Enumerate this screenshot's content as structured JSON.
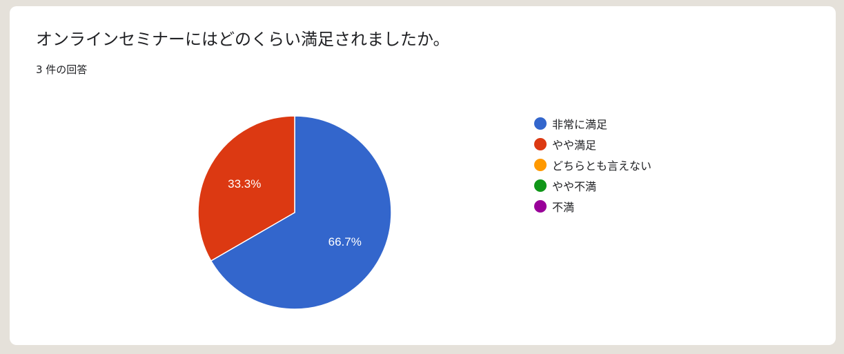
{
  "question": "オンラインセミナーにはどのくらい満足されましたか。",
  "response_count": "3 件の回答",
  "chart_data": {
    "type": "pie",
    "start_angle_deg": 90,
    "direction": "clockwise",
    "slices": [
      {
        "label": "非常に満足",
        "value": 2,
        "percent_label": "66.7%",
        "color": "#3366cc"
      },
      {
        "label": "やや満足",
        "value": 1,
        "percent_label": "33.3%",
        "color": "#dc3912"
      },
      {
        "label": "どちらとも言えない",
        "value": 0,
        "percent_label": "",
        "color": "#ff9900"
      },
      {
        "label": "やや不満",
        "value": 0,
        "percent_label": "",
        "color": "#109618"
      },
      {
        "label": "不満",
        "value": 0,
        "percent_label": "",
        "color": "#990099"
      }
    ],
    "legend_position": "right"
  }
}
